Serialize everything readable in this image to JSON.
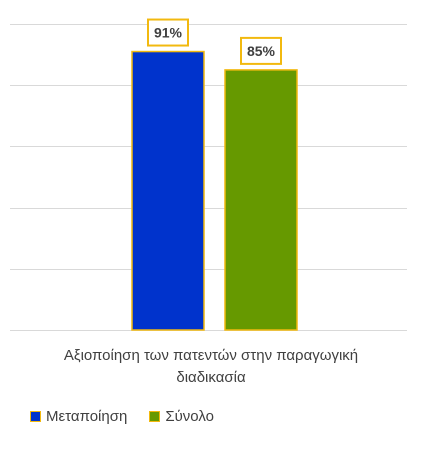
{
  "chart_data": {
    "type": "bar",
    "categories": [
      "Αξιοποίηση των πατεντών στην παραγωγική διαδικασία"
    ],
    "series": [
      {
        "name": "Μεταποίηση",
        "values": [
          91
        ],
        "color": "#0033cc",
        "data_label": "91%"
      },
      {
        "name": "Σύνολο",
        "values": [
          85
        ],
        "color": "#669900",
        "data_label": "85%"
      }
    ],
    "title": "",
    "xlabel": "",
    "ylabel": "",
    "ylim": [
      0,
      100
    ],
    "grid": true,
    "legend": "bottom-left",
    "bar_border_color": "#f2b90f",
    "label_box_border_color": "#f2b90f",
    "gridline_color": "#d9d9d9"
  }
}
